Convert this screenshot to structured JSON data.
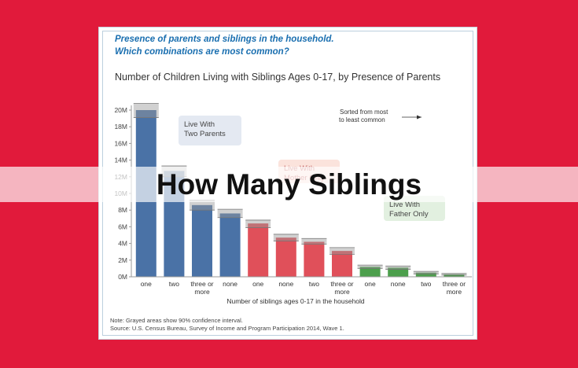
{
  "colors": {
    "background": "#e11a3b",
    "heading": "#1a6fb0",
    "blue": "#4a72a6",
    "red": "#e0505a",
    "green": "#4c9f4c"
  },
  "header": {
    "line1": "Presence of parents and siblings in the household.",
    "line2": "Which combinations are most common?"
  },
  "chart_data": {
    "type": "bar",
    "title": "Number of Children Living with Siblings Ages 0-17, by Presence of Parents",
    "xlabel": "Number of siblings ages 0-17 in the household",
    "ylabel": "",
    "ylim": [
      0,
      20
    ],
    "yticks": [
      "0M",
      "2M",
      "4M",
      "6M",
      "8M",
      "10M",
      "12M",
      "14M",
      "16M",
      "18M",
      "20M"
    ],
    "categories": [
      "one",
      "two",
      "three or more",
      "none",
      "one",
      "none",
      "two",
      "three or more",
      "one",
      "none",
      "two",
      "three or more"
    ],
    "values": [
      20.0,
      12.7,
      8.6,
      7.6,
      6.4,
      4.7,
      4.2,
      3.1,
      1.2,
      1.1,
      0.5,
      0.3
    ],
    "ci_low": [
      19.1,
      12.0,
      8.0,
      7.1,
      5.9,
      4.3,
      3.9,
      2.7,
      1.0,
      0.9,
      0.35,
      0.2
    ],
    "ci_high": [
      20.8,
      13.3,
      9.2,
      8.1,
      6.8,
      5.1,
      4.6,
      3.5,
      1.4,
      1.3,
      0.65,
      0.4
    ],
    "groups": [
      "blue",
      "blue",
      "blue",
      "blue",
      "red",
      "red",
      "red",
      "red",
      "green",
      "green",
      "green",
      "green"
    ],
    "series": [
      {
        "name": "Live With Two Parents",
        "color": "#4a72a6"
      },
      {
        "name": "Live With Mother Only",
        "color": "#e0505a"
      },
      {
        "name": "Live With Father Only",
        "color": "#4c9f4c"
      }
    ],
    "sort_note": [
      "Sorted from most",
      "to least common"
    ],
    "grid": false
  },
  "notes": {
    "line1": "Note: Grayed areas show 90% confidence interval.",
    "line2": "Source: U.S. Census Bureau, Survey of Income and Program Participation 2014, Wave 1."
  },
  "banner": {
    "text": "How Many Siblings"
  }
}
